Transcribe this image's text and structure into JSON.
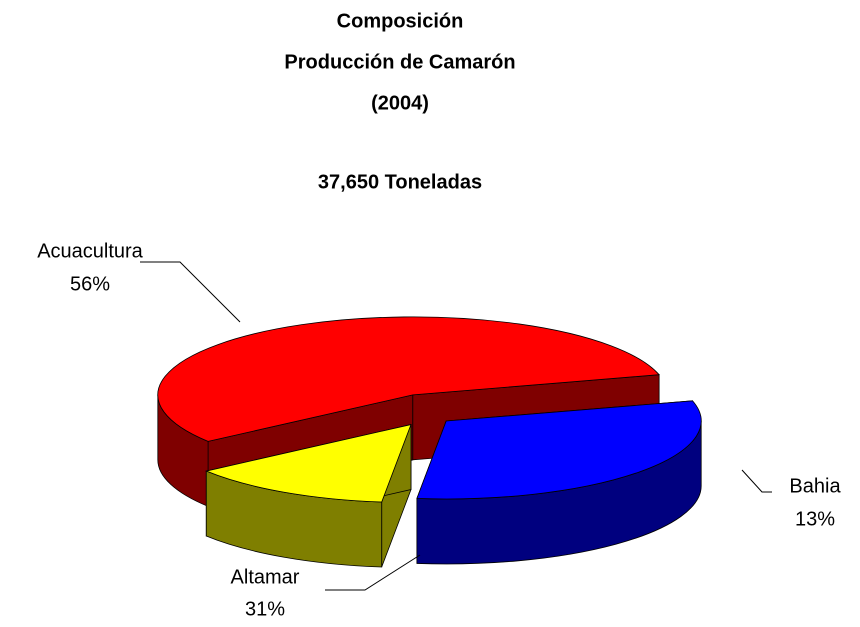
{
  "chart_data": {
    "type": "pie3d",
    "title": [
      "Composición",
      "Producción de Camarón",
      "(2004)"
    ],
    "subtitle": "37,650 Toneladas",
    "categories": [
      "Acuacultura",
      "Altamar",
      "Bahia"
    ],
    "values": [
      56,
      31,
      13
    ],
    "value_labels": [
      "56%",
      "31%",
      "13%"
    ],
    "colors": [
      "#ff0000",
      "#0000ff",
      "#ffff00"
    ],
    "exploded": true
  }
}
